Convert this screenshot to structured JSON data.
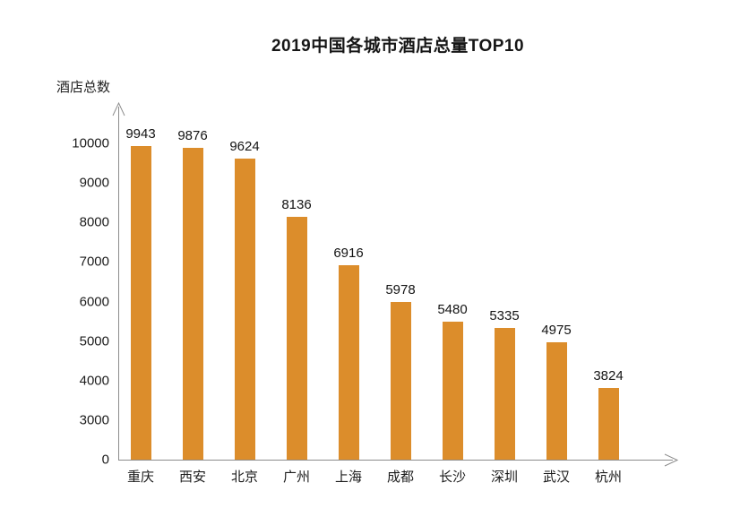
{
  "title": "2019中国各城市酒店总量TOP10",
  "chart_data": {
    "type": "bar",
    "title": "2019中国各城市酒店总量TOP10",
    "xlabel": "",
    "ylabel": "酒店总数",
    "categories": [
      "重庆",
      "西安",
      "北京",
      "广州",
      "上海",
      "成都",
      "长沙",
      "深圳",
      "武汉",
      "杭州"
    ],
    "values": [
      9943,
      9876,
      9624,
      8136,
      6916,
      5978,
      5480,
      5335,
      4975,
      3824
    ],
    "data_labels": [
      9943,
      9876,
      9624,
      8136,
      6916,
      5978,
      5480,
      5335,
      4975,
      3824
    ],
    "yticks": [
      0,
      3000,
      4000,
      5000,
      6000,
      7000,
      8000,
      9000,
      10000
    ],
    "ylim": [
      0,
      10000
    ],
    "ytick_spacing": "equal (axis compressed between 0 and 3000)",
    "grid": false,
    "legend": "none",
    "bar_color": "#DC8D2B",
    "axis_color": "#8C8C8C",
    "text_color": "#1C1C1C"
  }
}
